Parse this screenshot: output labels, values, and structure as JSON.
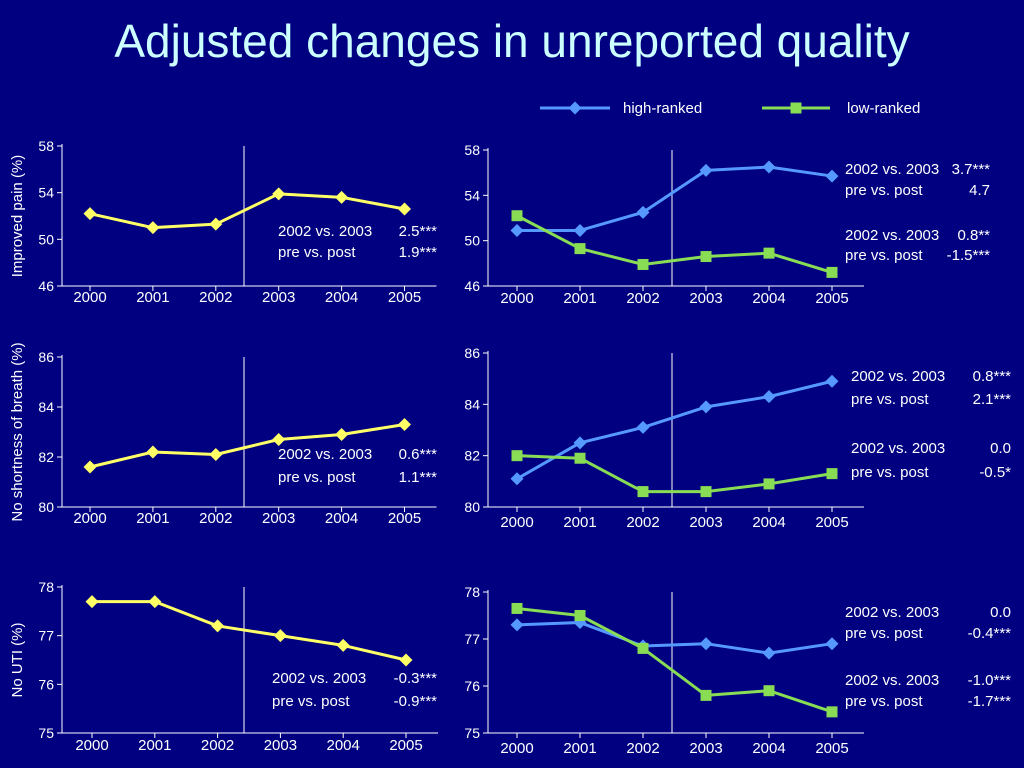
{
  "title": "Adjusted changes in unreported quality",
  "legend": [
    {
      "label": "high-ranked",
      "color": "#5599ff",
      "marker": "diamond"
    },
    {
      "label": "low-ranked",
      "color": "#88dd55",
      "marker": "square"
    }
  ],
  "colors": {
    "background": "#000080",
    "overall": "#ffff66",
    "high": "#5599ff",
    "low": "#88dd55",
    "axis": "#ffffff"
  },
  "chart_data": [
    {
      "type": "line",
      "ylabel": "Improved pain (%)",
      "categories": [
        "2000",
        "2001",
        "2002",
        "2003",
        "2004",
        "2005"
      ],
      "ylim": [
        46,
        58
      ],
      "yticks": [
        46,
        50,
        54,
        58
      ],
      "series": [
        {
          "values": [
            52.2,
            51.0,
            51.3,
            53.9,
            53.6,
            52.6
          ]
        }
      ],
      "annotations": [
        [
          "2002 vs. 2003",
          "2.5***"
        ],
        [
          "pre vs. post",
          "1.9***"
        ]
      ]
    },
    {
      "type": "line",
      "categories": [
        "2000",
        "2001",
        "2002",
        "2003",
        "2004",
        "2005"
      ],
      "ylim": [
        46,
        58
      ],
      "yticks": [
        46,
        50,
        54,
        58
      ],
      "series": [
        {
          "name": "high-ranked",
          "values": [
            50.9,
            50.9,
            52.5,
            56.2,
            56.5,
            55.7
          ]
        },
        {
          "name": "low-ranked",
          "values": [
            52.2,
            49.3,
            47.9,
            48.6,
            48.9,
            47.2
          ]
        }
      ],
      "annotations": [
        [
          "2002 vs. 2003",
          "3.7***"
        ],
        [
          "pre vs. post",
          "4.7"
        ],
        [
          "2002 vs. 2003",
          "0.8**"
        ],
        [
          "pre vs. post",
          "-1.5***"
        ]
      ]
    },
    {
      "type": "line",
      "ylabel": "No shortness of breath (%)",
      "categories": [
        "2000",
        "2001",
        "2002",
        "2003",
        "2004",
        "2005"
      ],
      "ylim": [
        80,
        86
      ],
      "yticks": [
        80,
        82,
        84,
        86
      ],
      "series": [
        {
          "values": [
            81.6,
            82.2,
            82.1,
            82.7,
            82.9,
            83.3
          ]
        }
      ],
      "annotations": [
        [
          "2002 vs. 2003",
          "0.6***"
        ],
        [
          "pre vs. post",
          "1.1***"
        ]
      ]
    },
    {
      "type": "line",
      "categories": [
        "2000",
        "2001",
        "2002",
        "2003",
        "2004",
        "2005"
      ],
      "ylim": [
        80,
        86
      ],
      "yticks": [
        80,
        82,
        84,
        86
      ],
      "series": [
        {
          "name": "high-ranked",
          "values": [
            81.1,
            82.5,
            83.1,
            83.9,
            84.3,
            84.9
          ]
        },
        {
          "name": "low-ranked",
          "values": [
            82.0,
            81.9,
            80.6,
            80.6,
            80.9,
            81.3
          ]
        }
      ],
      "annotations": [
        [
          "2002 vs. 2003",
          "0.8***"
        ],
        [
          "pre vs. post",
          "2.1***"
        ],
        [
          "2002 vs. 2003",
          "0.0"
        ],
        [
          "pre vs. post",
          "-0.5*"
        ]
      ]
    },
    {
      "type": "line",
      "ylabel": "No UTI (%)",
      "categories": [
        "2000",
        "2001",
        "2002",
        "2003",
        "2004",
        "2005"
      ],
      "ylim": [
        75,
        78
      ],
      "yticks": [
        75,
        76,
        77,
        78
      ],
      "series": [
        {
          "values": [
            77.7,
            77.7,
            77.2,
            77.0,
            76.8,
            76.5
          ]
        }
      ],
      "annotations": [
        [
          "2002 vs. 2003",
          "-0.3***"
        ],
        [
          "pre vs. post",
          "-0.9***"
        ]
      ]
    },
    {
      "type": "line",
      "categories": [
        "2000",
        "2001",
        "2002",
        "2003",
        "2004",
        "2005"
      ],
      "ylim": [
        75,
        78
      ],
      "yticks": [
        75,
        76,
        77,
        78
      ],
      "series": [
        {
          "name": "high-ranked",
          "values": [
            77.3,
            77.35,
            76.85,
            76.9,
            76.7,
            76.9
          ]
        },
        {
          "name": "low-ranked",
          "values": [
            77.65,
            77.5,
            76.8,
            75.8,
            75.9,
            75.45
          ]
        }
      ],
      "annotations": [
        [
          "2002 vs. 2003",
          "0.0"
        ],
        [
          "pre vs. post",
          "-0.4***"
        ],
        [
          "2002 vs. 2003",
          "-1.0***"
        ],
        [
          "pre vs. post",
          "-1.7***"
        ]
      ]
    }
  ]
}
